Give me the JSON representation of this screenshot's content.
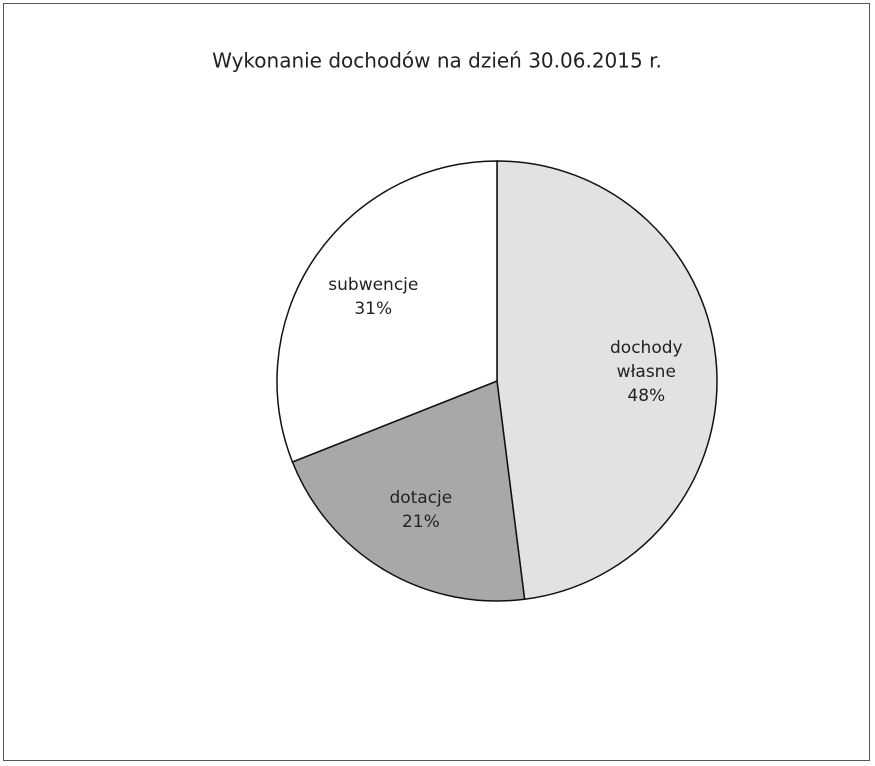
{
  "chart_data": {
    "type": "pie",
    "title": "Wykonanie dochodów na dzień 30.06.2015 r.",
    "categories": [
      "dochody własne",
      "dotacje",
      "subwencje"
    ],
    "values": [
      48,
      21,
      31
    ],
    "value_labels": [
      "48%",
      "21%",
      "31%"
    ],
    "colors": [
      "#e2e2e2",
      "#a8a8a8",
      "#ffffff"
    ]
  }
}
